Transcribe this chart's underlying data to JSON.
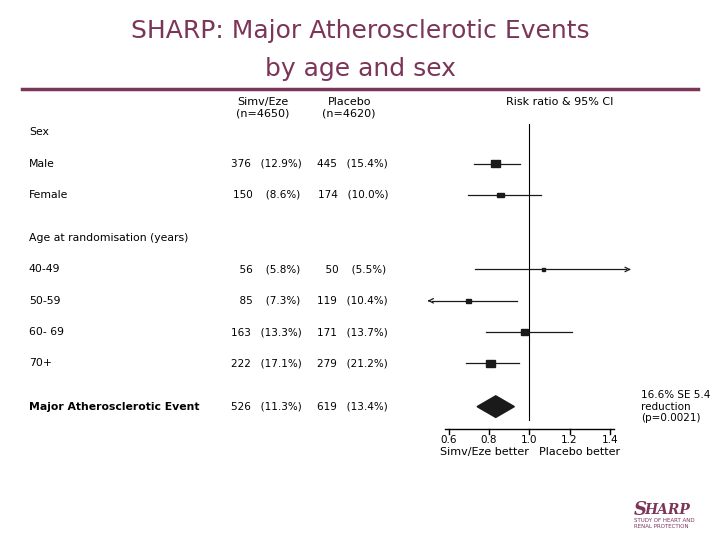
{
  "title_line1": "SHARP: Major Atherosclerotic Events",
  "title_line2": "by age and sex",
  "title_color": "#7b3558",
  "title_fontsize": 18,
  "header_line_color": "#7b3558",
  "col1_header": "Simv/Eze\n(n=4650)",
  "col2_header": "Placebo\n(n=4620)",
  "col3_header": "Risk ratio & 95% CI",
  "rows": [
    {
      "label": "Sex",
      "bold": false,
      "header": true,
      "rr": null,
      "ci_lo": null,
      "ci_hi": null,
      "simv": "",
      "placebo": ""
    },
    {
      "label": "Male",
      "bold": false,
      "header": false,
      "rr": 0.832,
      "ci_lo": 0.725,
      "ci_hi": 0.955,
      "simv": "376   (12.9%)",
      "placebo": "445   (15.4%)",
      "sq_size": 0.012
    },
    {
      "label": "Female",
      "bold": false,
      "header": false,
      "rr": 0.858,
      "ci_lo": 0.695,
      "ci_hi": 1.058,
      "simv": "150    (8.6%)",
      "placebo": "174   (10.0%)",
      "sq_size": 0.009
    },
    {
      "label": "",
      "bold": false,
      "header": true,
      "rr": null,
      "ci_lo": null,
      "ci_hi": null,
      "simv": "",
      "placebo": ""
    },
    {
      "label": "Age at randomisation (years)",
      "bold": false,
      "header": true,
      "rr": null,
      "ci_lo": null,
      "ci_hi": null,
      "simv": "",
      "placebo": ""
    },
    {
      "label": "40-49",
      "bold": false,
      "header": false,
      "rr": 1.07,
      "ci_lo": 0.73,
      "ci_hi": 1.6,
      "simv": "  56    (5.8%)",
      "placebo": "  50    (5.5%)",
      "sq_size": 0.005,
      "arrow_right": true
    },
    {
      "label": "50-59",
      "bold": false,
      "header": false,
      "rr": 0.7,
      "ci_lo": 0.5,
      "ci_hi": 0.94,
      "simv": "  85    (7.3%)",
      "placebo": "119   (10.4%)",
      "sq_size": 0.007,
      "arrow_left": true
    },
    {
      "label": "60- 69",
      "bold": false,
      "header": false,
      "rr": 0.975,
      "ci_lo": 0.785,
      "ci_hi": 1.21,
      "simv": "163   (13.3%)",
      "placebo": "171   (13.7%)",
      "sq_size": 0.01
    },
    {
      "label": "70+",
      "bold": false,
      "header": false,
      "rr": 0.808,
      "ci_lo": 0.688,
      "ci_hi": 0.948,
      "simv": "222   (17.1%)",
      "placebo": "279   (21.2%)",
      "sq_size": 0.012
    },
    {
      "label": "",
      "bold": false,
      "header": true,
      "rr": null,
      "ci_lo": null,
      "ci_hi": null,
      "simv": "",
      "placebo": ""
    },
    {
      "label": "Major Atherosclerotic Event",
      "bold": true,
      "header": false,
      "rr": 0.834,
      "ci_lo": 0.745,
      "ci_hi": 0.93,
      "simv": "526   (11.3%)",
      "placebo": "619   (13.4%)",
      "sq_size": 0.0,
      "diamond": true
    }
  ],
  "annotation": "16.6% SE 5.4\nreduction\n(p=0.0021)",
  "xmin": 0.5,
  "xmax": 1.5,
  "xticks": [
    0.6,
    0.8,
    1.0,
    1.2,
    1.4
  ],
  "xlabel_left": "Simv/Eze better",
  "xlabel_right": "Placebo better",
  "bg_color": "#ffffff",
  "text_color": "#000000",
  "marker_color": "#1a1a1a",
  "sharp_logo_color": "#7b3558"
}
